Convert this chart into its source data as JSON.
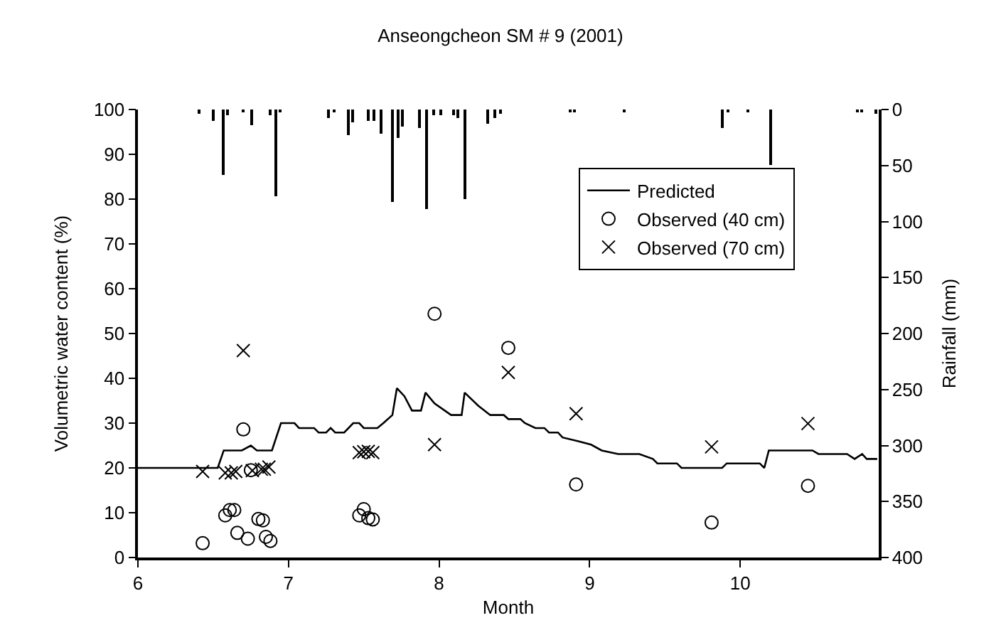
{
  "chart_data": {
    "type": "scatter",
    "title": "Anseongcheon SM # 9 (2001)",
    "xlabel": "Month",
    "ylabel": "Volumetric water content (%)",
    "y2label": "Rainfall (mm)",
    "xlim": [
      6,
      10.92
    ],
    "xticks": [
      6,
      7,
      8,
      9,
      10
    ],
    "ylim": [
      0,
      100
    ],
    "yticks": [
      0,
      10,
      20,
      30,
      40,
      50,
      60,
      70,
      80,
      90,
      100
    ],
    "y2lim": [
      400,
      0
    ],
    "y2ticks": [
      0,
      50,
      100,
      150,
      200,
      250,
      300,
      350,
      400
    ],
    "grid": false,
    "legend": "top right",
    "series": [
      {
        "type": "bar",
        "axis": "y2",
        "color": "#000000",
        "x": [
          6.41,
          6.5,
          6.57,
          6.6,
          6.7,
          6.76,
          6.88,
          6.92,
          6.95,
          7.27,
          7.3,
          7.4,
          7.43,
          7.53,
          7.57,
          7.62,
          7.69,
          7.73,
          7.76,
          7.87,
          7.92,
          7.97,
          8.01,
          8.1,
          8.13,
          8.17,
          8.32,
          8.37,
          8.41,
          8.87,
          8.9,
          9.23,
          9.88,
          9.92,
          10.05,
          10.2,
          10.78,
          10.81,
          10.9
        ],
        "values": [
          4,
          10,
          58,
          5,
          3,
          14,
          5,
          78,
          3,
          8,
          3,
          23,
          12,
          10,
          10,
          21,
          82,
          25,
          15,
          17,
          89,
          5,
          5,
          5,
          8,
          80,
          13,
          8,
          4,
          2,
          2,
          2,
          17,
          3,
          2,
          50,
          3,
          3,
          4
        ]
      },
      {
        "type": "line",
        "name": "Predicted",
        "color": "#000000",
        "marker": "none",
        "line_style": "solid",
        "x": [
          6.0,
          6.53,
          6.57,
          6.69,
          6.75,
          6.79,
          6.89,
          6.95,
          7.04,
          7.07,
          7.17,
          7.2,
          7.25,
          7.28,
          7.31,
          7.37,
          7.43,
          7.47,
          7.5,
          7.59,
          7.63,
          7.69,
          7.72,
          7.77,
          7.82,
          7.88,
          7.91,
          7.97,
          8.08,
          8.15,
          8.17,
          8.26,
          8.34,
          8.43,
          8.46,
          8.54,
          8.57,
          8.64,
          8.7,
          8.73,
          8.79,
          8.82,
          8.92,
          9.01,
          9.08,
          9.19,
          9.33,
          9.42,
          9.45,
          9.58,
          9.61,
          9.88,
          9.91,
          10.13,
          10.16,
          10.19,
          10.48,
          10.52,
          10.71,
          10.76,
          10.81,
          10.84,
          10.91
        ],
        "values": [
          20,
          20,
          23.9,
          23.9,
          25,
          23.9,
          23.9,
          30,
          30,
          28.9,
          28.9,
          27.9,
          27.9,
          28.9,
          27.9,
          27.9,
          30,
          30,
          28.9,
          28.9,
          30,
          31.8,
          37.8,
          36,
          32.8,
          32.8,
          36.8,
          34.4,
          31.8,
          31.8,
          36.8,
          33.9,
          31.8,
          31.8,
          30.9,
          30.9,
          30,
          28.9,
          28.9,
          27.9,
          27.9,
          26.8,
          26,
          25.2,
          23.9,
          23.1,
          23.1,
          22,
          21,
          21,
          20,
          20,
          21,
          21,
          20,
          23.9,
          23.9,
          23.1,
          23.1,
          22,
          23.1,
          22,
          22
        ]
      },
      {
        "name": "Observed (40 cm)",
        "color": "#000000",
        "marker": "circle",
        "x": [
          6.43,
          6.58,
          6.61,
          6.64,
          6.66,
          6.7,
          6.73,
          6.75,
          6.8,
          6.83,
          6.85,
          6.88,
          7.47,
          7.5,
          7.53,
          7.56,
          7.97,
          8.46,
          8.91,
          9.81,
          10.45
        ],
        "values": [
          3.2,
          9.4,
          10.6,
          10.6,
          5.5,
          28.6,
          4.2,
          19.5,
          8.6,
          8.3,
          4.6,
          3.7,
          9.4,
          10.8,
          8.8,
          8.5,
          54.4,
          46.8,
          16.3,
          7.8,
          16
        ]
      },
      {
        "name": "Observed (70 cm)",
        "color": "#000000",
        "marker": "cross",
        "x": [
          6.43,
          6.58,
          6.62,
          6.65,
          6.7,
          6.76,
          6.82,
          6.84,
          6.87,
          7.47,
          7.5,
          7.53,
          7.56,
          7.97,
          8.46,
          8.91,
          9.81,
          10.45
        ],
        "values": [
          19.2,
          18.9,
          18.9,
          19.2,
          46.2,
          19.4,
          19.7,
          19.7,
          20.2,
          23.4,
          23.6,
          23.7,
          23.4,
          25.2,
          41.3,
          32.1,
          24.7,
          29.9
        ]
      }
    ]
  }
}
